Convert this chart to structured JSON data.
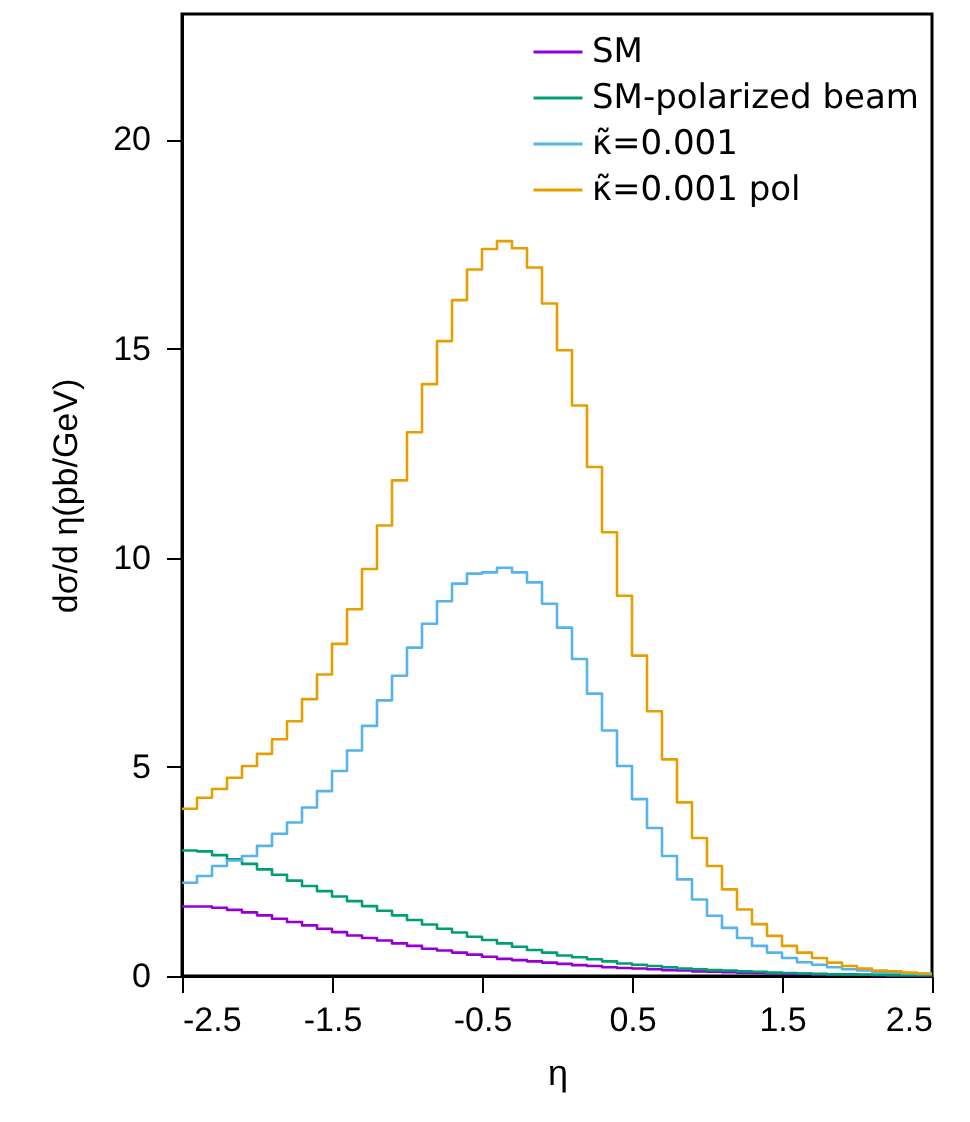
{
  "chart_data": {
    "type": "histogram",
    "xlabel": "η",
    "ylabel": "dσ/d η(pb/GeV)",
    "bins": [
      -2.5,
      -2.4,
      -2.3,
      -2.2,
      -2.1,
      -2.0,
      -1.9,
      -1.8,
      -1.7,
      -1.6,
      -1.5,
      -1.4,
      -1.3,
      -1.2,
      -1.1,
      -1.0,
      -0.9,
      -0.8,
      -0.7,
      -0.6,
      -0.5,
      -0.4,
      -0.3,
      -0.2,
      -0.1,
      0.0,
      0.1,
      0.2,
      0.3,
      0.4,
      0.5,
      0.6,
      0.7,
      0.8,
      0.9,
      1.0,
      1.1,
      1.2,
      1.3,
      1.4,
      1.5,
      1.6,
      1.7,
      1.8,
      1.9,
      2.0,
      2.1,
      2.2,
      2.3,
      2.4,
      2.5
    ],
    "series": [
      {
        "name": "SM",
        "color": "#9400d3",
        "values": [
          1.66,
          1.66,
          1.63,
          1.58,
          1.52,
          1.45,
          1.37,
          1.29,
          1.21,
          1.13,
          1.05,
          0.97,
          0.91,
          0.85,
          0.78,
          0.72,
          0.65,
          0.61,
          0.56,
          0.51,
          0.46,
          0.41,
          0.38,
          0.35,
          0.32,
          0.29,
          0.26,
          0.24,
          0.21,
          0.19,
          0.18,
          0.16,
          0.14,
          0.13,
          0.11,
          0.1,
          0.09,
          0.08,
          0.07,
          0.06,
          0.05,
          0.05,
          0.04,
          0.04,
          0.03,
          0.03,
          0.02,
          0.02,
          0.02,
          0.02
        ]
      },
      {
        "name": "SM-polarized beam",
        "color": "#009e73",
        "values": [
          3.0,
          2.98,
          2.89,
          2.79,
          2.68,
          2.55,
          2.42,
          2.28,
          2.15,
          2.03,
          1.9,
          1.79,
          1.67,
          1.56,
          1.45,
          1.34,
          1.23,
          1.13,
          1.04,
          0.94,
          0.86,
          0.78,
          0.7,
          0.62,
          0.56,
          0.49,
          0.45,
          0.4,
          0.35,
          0.3,
          0.27,
          0.24,
          0.21,
          0.18,
          0.16,
          0.14,
          0.13,
          0.11,
          0.1,
          0.08,
          0.07,
          0.06,
          0.05,
          0.04,
          0.04,
          0.03,
          0.03,
          0.02,
          0.02,
          0.02
        ]
      },
      {
        "name": "κ̃=0.001",
        "color": "#56b4e9",
        "values": [
          2.23,
          2.39,
          2.63,
          2.76,
          2.87,
          3.11,
          3.4,
          3.67,
          4.03,
          4.42,
          4.9,
          5.39,
          5.98,
          6.59,
          7.18,
          7.85,
          8.42,
          8.96,
          9.38,
          9.62,
          9.65,
          9.76,
          9.65,
          9.41,
          8.9,
          8.33,
          7.58,
          6.75,
          5.87,
          5.02,
          4.23,
          3.54,
          2.87,
          2.31,
          1.83,
          1.44,
          1.15,
          0.91,
          0.72,
          0.56,
          0.43,
          0.33,
          0.27,
          0.21,
          0.16,
          0.13,
          0.1,
          0.08,
          0.06,
          0.05
        ]
      },
      {
        "name": "κ̃=0.001 pol",
        "color": "#e69f00",
        "values": [
          4.0,
          4.26,
          4.47,
          4.74,
          5.02,
          5.31,
          5.66,
          6.09,
          6.62,
          7.21,
          7.94,
          8.77,
          9.73,
          10.77,
          11.85,
          13.0,
          14.15,
          15.18,
          16.16,
          16.89,
          17.38,
          17.57,
          17.4,
          16.94,
          16.08,
          14.96,
          13.64,
          12.17,
          10.61,
          9.09,
          7.66,
          6.33,
          5.18,
          4.15,
          3.3,
          2.63,
          2.07,
          1.59,
          1.24,
          0.96,
          0.72,
          0.56,
          0.43,
          0.32,
          0.24,
          0.18,
          0.13,
          0.11,
          0.08,
          0.06
        ]
      }
    ],
    "xlim": [
      -2.5,
      2.5
    ],
    "xticks": [
      -2.5,
      -1.5,
      -0.5,
      0.5,
      1.5,
      2.5
    ],
    "ylim": [
      0,
      23
    ],
    "yticks": [
      0,
      5,
      10,
      15,
      20
    ],
    "legend": "top right",
    "grid": false
  }
}
